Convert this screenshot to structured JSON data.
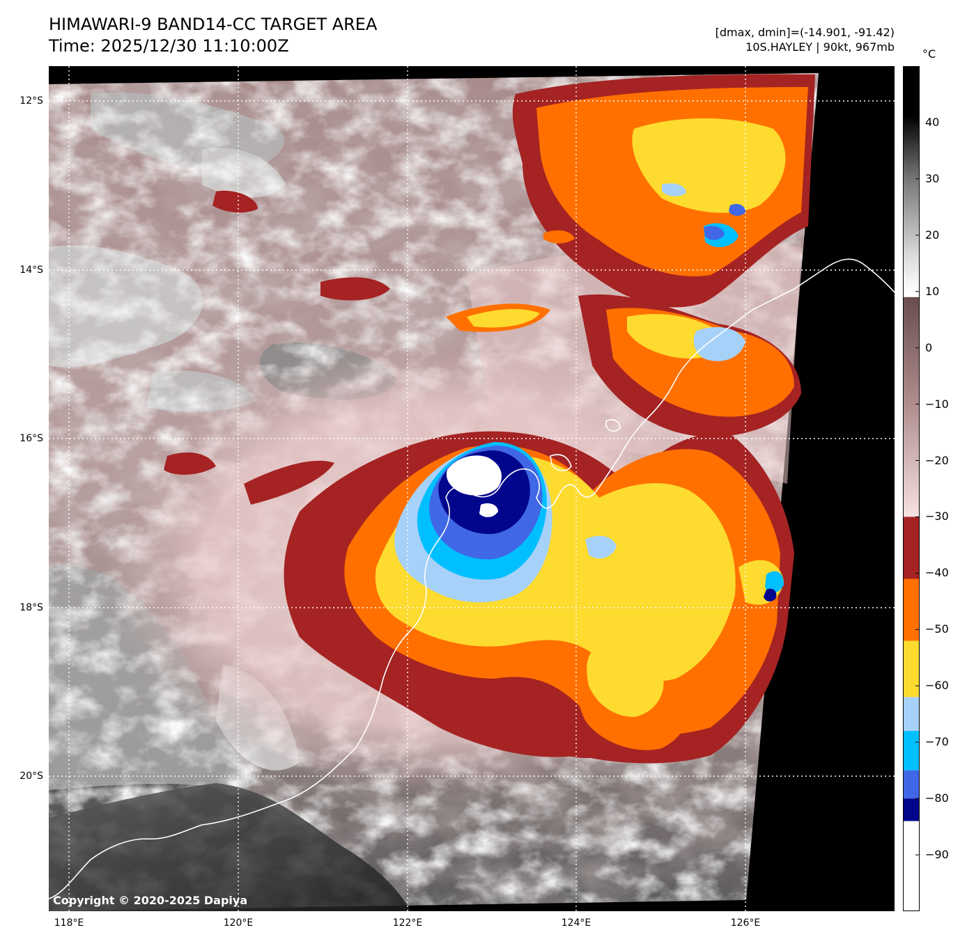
{
  "header": {
    "title_line1": "HIMAWARI-9 BAND14-CC TARGET AREA",
    "title_line2": "Time: 2025/12/30 11:10:00Z",
    "info_line1": "[dmax, dmin]=(-14.901, -91.42)",
    "info_line2": "10S.HAYLEY | 90kt, 967mb"
  },
  "map": {
    "lat_labels": [
      "12°S",
      "14°S",
      "16°S",
      "18°S",
      "20°S"
    ],
    "lon_labels": [
      "118°E",
      "120°E",
      "122°E",
      "124°E",
      "126°E"
    ],
    "copyright": "Copyright © 2020-2025 Dapiya",
    "storm_center": {
      "lon": 122.7,
      "lat": -16.7
    }
  },
  "colorbar": {
    "unit": "°C",
    "tick_labels": [
      "40",
      "30",
      "20",
      "10",
      "0",
      "−10",
      "−20",
      "−30",
      "−40",
      "−50",
      "−60",
      "−70",
      "−80",
      "−90"
    ],
    "tick_values": [
      40,
      30,
      20,
      10,
      0,
      -10,
      -20,
      -30,
      -40,
      -50,
      -60,
      -70,
      -80,
      -90
    ],
    "range": [
      -100,
      50
    ],
    "bands": [
      {
        "from": 10,
        "to": 50,
        "color": "gradient-gray-black"
      },
      {
        "from": -30,
        "to": 9,
        "color": "gradient-pink-brown"
      },
      {
        "from": -41,
        "to": -30,
        "color": "#a52323"
      },
      {
        "from": -52,
        "to": -41,
        "color": "#ff7000"
      },
      {
        "from": -62,
        "to": -52,
        "color": "#fddb2f"
      },
      {
        "from": -68,
        "to": -62,
        "color": "#a6d1f9"
      },
      {
        "from": -75,
        "to": -68,
        "color": "#00bfff"
      },
      {
        "from": -80,
        "to": -75,
        "color": "#3f67e6"
      },
      {
        "from": -84,
        "to": -80,
        "color": "#02068c"
      },
      {
        "from": -100,
        "to": -84,
        "color": "#ffffff"
      }
    ]
  }
}
